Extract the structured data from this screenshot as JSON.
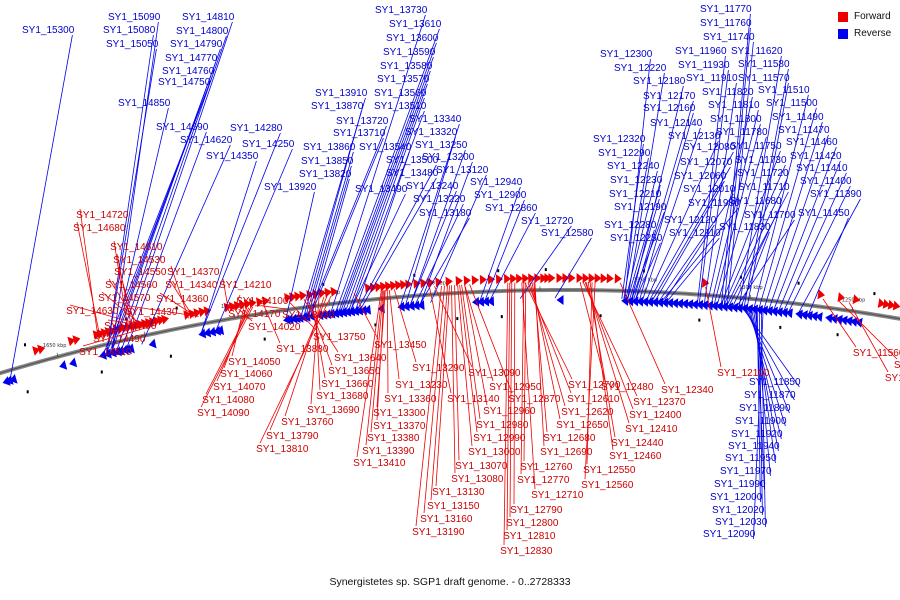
{
  "legend": {
    "forward_label": "Forward",
    "reverse_label": "Reverse",
    "forward_color": "#ee0000",
    "reverse_color": "#0000ee"
  },
  "caption": "Synergistetes sp. SGP1 draft genome. - 0..2728333",
  "ticks": [
    "1650 kbp",
    "1600 kbp",
    "1550 kbp",
    "1500 kbp",
    "1450 kbp",
    "1400 kbp",
    "1350 kbp",
    "1300 kbp",
    "1250 kbp"
  ],
  "genes": {
    "reverse": [
      "SY1_15300",
      "SY1_15090",
      "SY1_15080",
      "SY1_15050",
      "SY1_14810",
      "SY1_14800",
      "SY1_14790",
      "SY1_14770",
      "SY1_14760",
      "SY1_14750",
      "SY1_14850",
      "SY1_14690",
      "SY1_14620",
      "SY1_14280",
      "SY1_14250",
      "SY1_14350",
      "SY1_13920",
      "SY1_13730",
      "SY1_13610",
      "SY1_13600",
      "SY1_13590",
      "SY1_13580",
      "SY1_13570",
      "SY1_13560",
      "SY1_13510",
      "SY1_13910",
      "SY1_13870",
      "SY1_13720",
      "SY1_13710",
      "SY1_13860",
      "SY1_13850",
      "SY1_13820",
      "SY1_13540",
      "SY1_13500",
      "SY1_13480",
      "SY1_13490",
      "SY1_13340",
      "SY1_13320",
      "SY1_13250",
      "SY1_13200",
      "SY1_13120",
      "SY1_13240",
      "SY1_13220",
      "SY1_13180",
      "SY1_12940",
      "SY1_12900",
      "SY1_12860",
      "SY1_12720",
      "SY1_12580",
      "SY1_12300",
      "SY1_12220",
      "SY1_12180",
      "SY1_12170",
      "SY1_12160",
      "SY1_12140",
      "SY1_12130",
      "SY1_12080",
      "SY1_12070",
      "SY1_12060",
      "SY1_12010",
      "SY1_11980",
      "SY1_12120",
      "SY1_12110",
      "SY1_12320",
      "SY1_12290",
      "SY1_12240",
      "SY1_12230",
      "SY1_12210",
      "SY1_12190",
      "SY1_12280",
      "SY1_12250",
      "SY1_11770",
      "SY1_11760",
      "SY1_11740",
      "SY1_11960",
      "SY1_11620",
      "SY1_11930",
      "SY1_11580",
      "SY1_11910",
      "SY1_11570",
      "SY1_11820",
      "SY1_11510",
      "SY1_11810",
      "SY1_11500",
      "SY1_11800",
      "SY1_11490",
      "SY1_11780",
      "SY1_11470",
      "SY1_11750",
      "SY1_11460",
      "SY1_11730",
      "SY1_11420",
      "SY1_11720",
      "SY1_11410",
      "SY1_11710",
      "SY1_11400",
      "SY1_11680",
      "SY1_11390",
      "SY1_11700",
      "SY1_11450",
      "SY1_11830",
      "SY1_11850",
      "SY1_11870",
      "SY1_11890",
      "SY1_11900",
      "SY1_11920",
      "SY1_11940",
      "SY1_11950",
      "SY1_11970",
      "SY1_11990",
      "SY1_12000",
      "SY1_12020",
      "SY1_12030",
      "SY1_12090"
    ],
    "forward": [
      "SY1_14720",
      "SY1_14680",
      "SY1_14610",
      "SY1_14530",
      "SY1_14550",
      "SY1_14370",
      "SY1_14560",
      "SY1_14340",
      "SY1_14570",
      "SY1_14360",
      "SY1_14630",
      "SY1_14430",
      "SY1_14480",
      "SY1_14490",
      "SY1_14510",
      "SY1_14210",
      "SY1_14100",
      "SY1_14170",
      "SY1_14020",
      "SY1_13930",
      "SY1_13750",
      "SY1_13880",
      "SY1_14050",
      "SY1_14060",
      "SY1_14070",
      "SY1_14080",
      "SY1_14090",
      "SY1_13640",
      "SY1_13650",
      "SY1_13660",
      "SY1_13680",
      "SY1_13690",
      "SY1_13760",
      "SY1_13790",
      "SY1_13810",
      "SY1_13450",
      "SY1_13290",
      "SY1_13230",
      "SY1_13360",
      "SY1_13300",
      "SY1_13370",
      "SY1_13380",
      "SY1_13390",
      "SY1_13410",
      "SY1_13090",
      "SY1_13140",
      "SY1_12950",
      "SY1_12870",
      "SY1_12960",
      "SY1_12980",
      "SY1_12990",
      "SY1_13000",
      "SY1_13070",
      "SY1_13080",
      "SY1_13130",
      "SY1_13150",
      "SY1_13160",
      "SY1_13190",
      "SY1_12700",
      "SY1_12610",
      "SY1_12620",
      "SY1_12650",
      "SY1_12680",
      "SY1_12690",
      "SY1_12760",
      "SY1_12770",
      "SY1_12710",
      "SY1_12790",
      "SY1_12800",
      "SY1_12810",
      "SY1_12830",
      "SY1_12480",
      "SY1_12370",
      "SY1_12400",
      "SY1_12410",
      "SY1_12440",
      "SY1_12460",
      "SY1_12550",
      "SY1_12560",
      "SY1_12340",
      "SY1_12100",
      "SY1_11560",
      "SY1_11440",
      "SY1_11480"
    ]
  }
}
